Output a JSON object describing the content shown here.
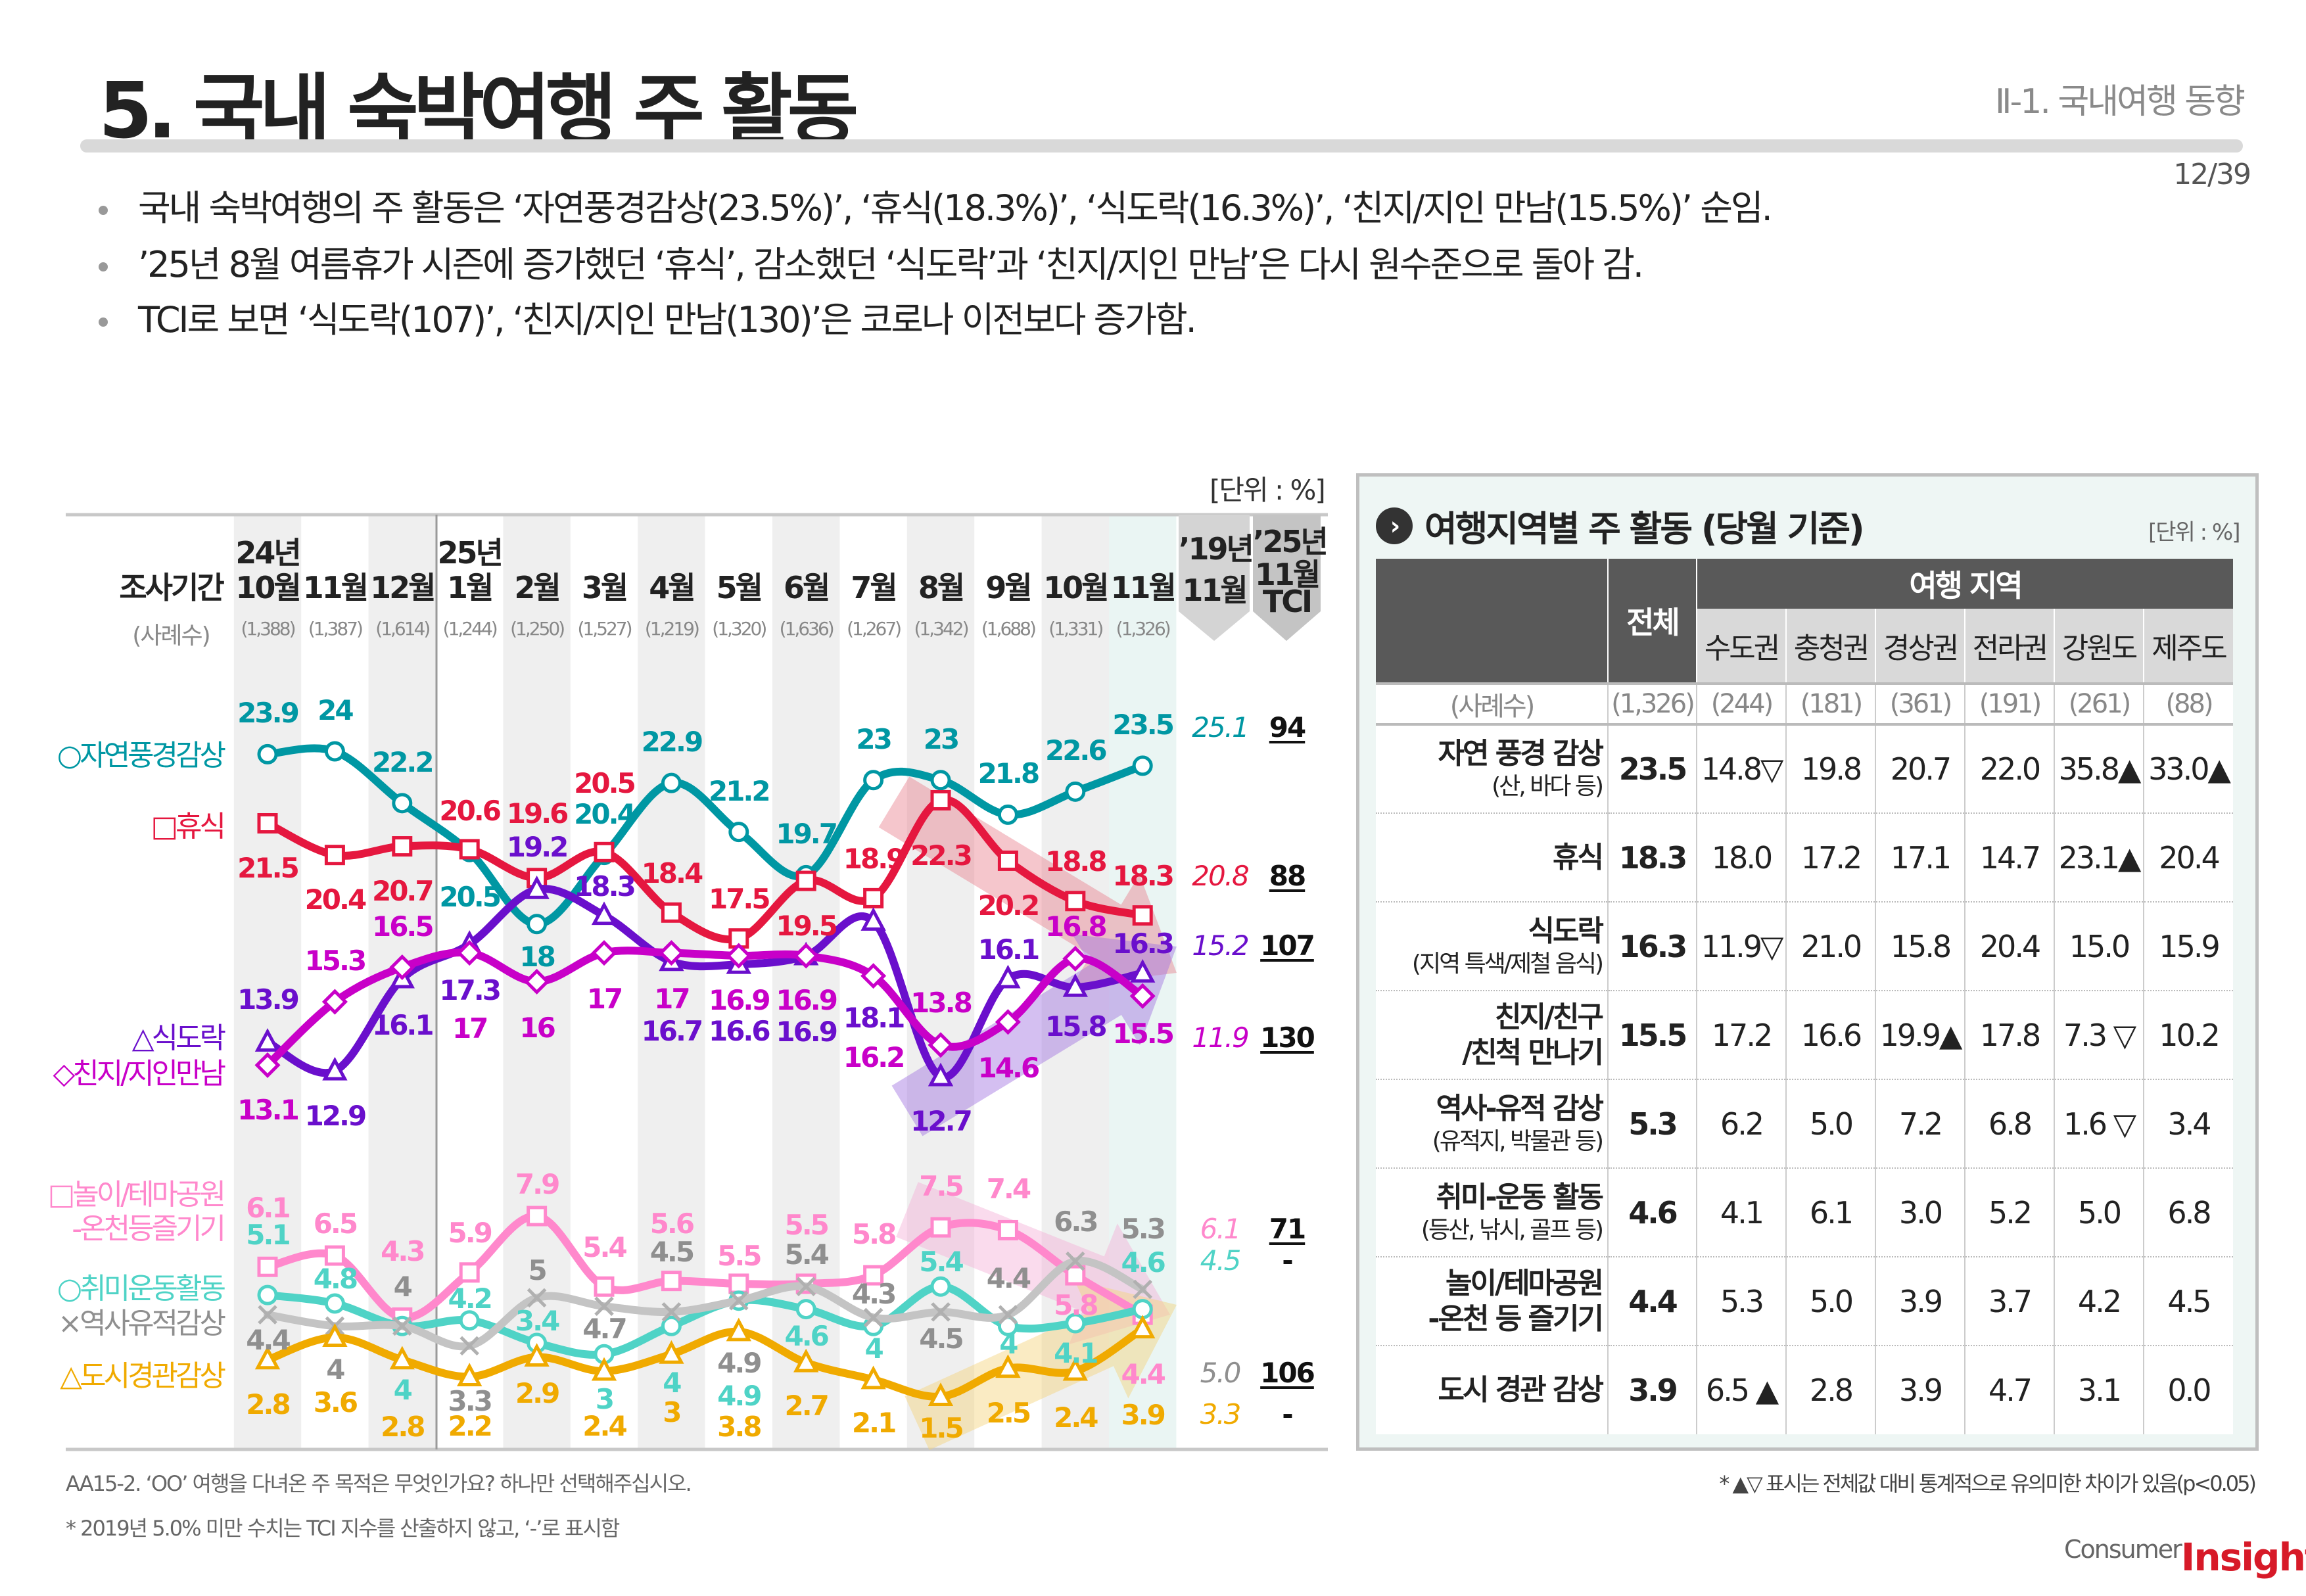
{
  "header": {
    "title": "5. 국내 숙박여행 주 활동",
    "section": "Ⅱ-1. 국내여행 동향",
    "page": "12/39"
  },
  "bullets": [
    "국내 숙박여행의 주 활동은 ‘자연풍경감상(23.5%)’, ‘휴식(18.3%)’, ‘식도락(16.3%)’, ‘친지/지인 만남(15.5%)’ 순임.",
    "’25년 8월 여름휴가 시즌에 증가했던 ‘휴식’, 감소했던 ‘식도락’과 ‘친지/지인 만남’은 다시 원수준으로 돌아 감.",
    "TCI로 보면 ‘식도락(107)’, ‘친지/지인 만남(130)’은 코로나 이전보다 증가함."
  ],
  "chart_header": {
    "unit": "[단위 : %]",
    "period_label": "조사기간",
    "n_label": "(사례수)",
    "year_labels": [
      "24년",
      "25년"
    ],
    "months": [
      "10월",
      "11월",
      "12월",
      "1월",
      "2월",
      "3월",
      "4월",
      "5월",
      "6월",
      "7월",
      "8월",
      "9월",
      "10월",
      "11월"
    ],
    "sample_sizes": [
      "(1,388)",
      "(1,387)",
      "(1,614)",
      "(1,244)",
      "(1,250)",
      "(1,527)",
      "(1,219)",
      "(1,320)",
      "(1,636)",
      "(1,267)",
      "(1,342)",
      "(1,688)",
      "(1,331)",
      "(1,326)"
    ],
    "col_2019": [
      "’19년",
      "11월"
    ],
    "col_tci": [
      "’25년",
      "11월",
      "TCI"
    ]
  },
  "chart_data": [
    {
      "type": "line",
      "categories": [
        "24년 10월",
        "11월",
        "12월",
        "25년 1월",
        "2월",
        "3월",
        "4월",
        "5월",
        "6월",
        "7월",
        "8월",
        "9월",
        "10월",
        "11월"
      ],
      "series": [
        {
          "name": "자연풍경감상",
          "marker": "○",
          "color": "#0097a3",
          "values": [
            23.9,
            24.0,
            22.2,
            20.5,
            18.0,
            20.4,
            22.9,
            21.2,
            19.7,
            23.0,
            23.0,
            21.8,
            22.6,
            23.5
          ],
          "y2019": "25.1",
          "tci": "94"
        },
        {
          "name": "휴식",
          "marker": "□",
          "color": "#e5173f",
          "values": [
            21.5,
            20.4,
            20.7,
            20.6,
            19.6,
            20.5,
            18.4,
            17.5,
            19.5,
            18.9,
            22.3,
            20.2,
            18.8,
            18.3
          ],
          "y2019": "20.8",
          "tci": "88"
        },
        {
          "name": "식도락",
          "marker": "△",
          "color": "#6a0fcc",
          "values": [
            13.9,
            12.9,
            16.1,
            17.3,
            19.2,
            18.3,
            16.7,
            16.6,
            16.9,
            18.1,
            12.7,
            16.1,
            15.8,
            16.3
          ],
          "y2019": "15.2",
          "tci": "107"
        },
        {
          "name": "친지/지인만남",
          "marker": "◇",
          "color": "#c800c8",
          "values": [
            13.1,
            15.3,
            16.5,
            17.0,
            16.0,
            17.0,
            17.0,
            16.9,
            16.9,
            16.2,
            13.8,
            14.6,
            16.8,
            15.5
          ],
          "y2019": "11.9",
          "tci": "130"
        }
      ]
    },
    {
      "type": "line",
      "categories": [
        "24년 10월",
        "11월",
        "12월",
        "25년 1월",
        "2월",
        "3월",
        "4월",
        "5월",
        "6월",
        "7월",
        "8월",
        "9월",
        "10월",
        "11월"
      ],
      "series": [
        {
          "name": "놀이/테마공원-온천등즐기기",
          "name_lines": [
            "놀이/테마공원",
            "-온천등즐기기"
          ],
          "marker": "□",
          "color": "#ff88cc",
          "values": [
            6.1,
            6.5,
            4.3,
            5.9,
            7.9,
            5.4,
            5.6,
            5.5,
            5.5,
            5.8,
            7.5,
            7.4,
            5.8,
            4.4
          ],
          "y2019": "6.1",
          "tci": "71"
        },
        {
          "name": "취미운동활동",
          "marker": "○",
          "color": "#4fd3c6",
          "values": [
            5.1,
            4.8,
            4.0,
            4.2,
            3.4,
            3.0,
            4.0,
            4.9,
            4.6,
            4.0,
            5.4,
            4.0,
            4.1,
            4.6
          ],
          "y2019": "4.5",
          "tci": "-"
        },
        {
          "name": "역사유적감상",
          "marker": "×",
          "color": "#8f8f8f",
          "line_color": "#c4c4c4",
          "values": [
            4.4,
            4.0,
            4.0,
            3.3,
            5.0,
            4.7,
            4.5,
            4.9,
            5.4,
            4.3,
            4.5,
            4.4,
            6.3,
            5.3
          ],
          "y2019": "5.0",
          "tci": "106"
        },
        {
          "name": "도시경관감상",
          "marker": "△",
          "color": "#f0aa00",
          "values": [
            2.8,
            3.6,
            2.8,
            2.2,
            2.9,
            2.4,
            3.0,
            3.8,
            2.7,
            2.1,
            1.5,
            2.5,
            2.4,
            3.9
          ],
          "y2019": "3.3",
          "tci": "-"
        }
      ]
    }
  ],
  "footnotes": [
    "AA15-2. ‘OO’ 여행을 다녀온 주 목적은 무엇인가요? 하나만 선택해주십시오.",
    "* 2019년 5.0% 미만 수치는 TCI 지수를 산출하지 않고, ‘-’로 표시함"
  ],
  "panel": {
    "title": "여행지역별 주 활동 (당월 기준)",
    "unit": "[단위 : %]",
    "total_label": "전체",
    "region_group": "여행 지역",
    "regions": [
      "수도권",
      "충청권",
      "경상권",
      "전라권",
      "강원도",
      "제주도"
    ],
    "n_label": "(사례수)",
    "n_values": [
      "(1,326)",
      "(244)",
      "(181)",
      "(361)",
      "(191)",
      "(261)",
      "(88)"
    ],
    "rows": [
      {
        "main": "자연 풍경 감상",
        "sub": "(산, 바다 등)",
        "total": "23.5",
        "cells": [
          "14.8▽",
          "19.8",
          "20.7",
          "22.0",
          "35.8▲",
          "33.0▲"
        ]
      },
      {
        "main": "휴식",
        "sub": "",
        "total": "18.3",
        "cells": [
          "18.0",
          "17.2",
          "17.1",
          "14.7",
          "23.1▲",
          "20.4"
        ]
      },
      {
        "main": "식도락",
        "sub": "(지역 특색/제철 음식)",
        "total": "16.3",
        "cells": [
          "11.9▽",
          "21.0",
          "15.8",
          "20.4",
          "15.0",
          "15.9"
        ]
      },
      {
        "main": "친지/친구",
        "main2": "/친척 만나기",
        "total": "15.5",
        "cells": [
          "17.2",
          "16.6",
          "19.9▲",
          "17.8",
          "7.3 ▽",
          "10.2"
        ]
      },
      {
        "main": "역사-유적 감상",
        "sub": "(유적지, 박물관 등)",
        "total": "5.3",
        "cells": [
          "6.2",
          "5.0",
          "7.2",
          "6.8",
          "1.6 ▽",
          "3.4"
        ]
      },
      {
        "main": "취미-운동 활동",
        "sub": "(등산, 낚시, 골프 등)",
        "total": "4.6",
        "cells": [
          "4.1",
          "6.1",
          "3.0",
          "5.2",
          "5.0",
          "6.8"
        ]
      },
      {
        "main": "놀이/테마공원",
        "main2": "-온천 등 즐기기",
        "total": "4.4",
        "cells": [
          "5.3",
          "5.0",
          "3.9",
          "3.7",
          "4.2",
          "4.5"
        ]
      },
      {
        "main": "도시 경관 감상",
        "sub": "",
        "total": "3.9",
        "cells": [
          "6.5 ▲",
          "2.8",
          "3.9",
          "4.7",
          "3.1",
          "0.0"
        ]
      }
    ],
    "footnote": "* ▲▽ 표시는 전체값 대비 통계적으로 유의미한 차이가 있음(p<0.05)"
  },
  "logo": {
    "part1": "Consumer",
    "part2": "Insight"
  }
}
